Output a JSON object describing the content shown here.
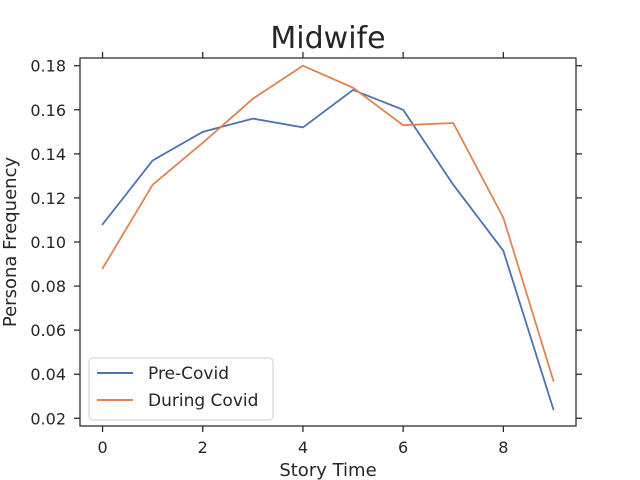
{
  "chart_data": {
    "type": "line",
    "title": "Midwife",
    "xlabel": "Story Time",
    "ylabel": "Persona Frequency",
    "xlim": [
      -0.45,
      9.45
    ],
    "ylim": [
      0.0165,
      0.1835
    ],
    "xticks": [
      0,
      2,
      4,
      6,
      8
    ],
    "yticks": [
      0.02,
      0.04,
      0.06,
      0.08,
      0.1,
      0.12,
      0.14,
      0.16,
      0.18
    ],
    "ytick_labels": [
      "0.02",
      "0.04",
      "0.06",
      "0.08",
      "0.10",
      "0.12",
      "0.14",
      "0.16",
      "0.18"
    ],
    "xtick_labels": [
      "0",
      "2",
      "4",
      "6",
      "8"
    ],
    "grid": false,
    "legend_position": "lower-left",
    "x": [
      0,
      1,
      2,
      3,
      4,
      5,
      6,
      7,
      8,
      9
    ],
    "series": [
      {
        "name": "Pre-Covid",
        "color": "#4c72b0",
        "values": [
          0.108,
          0.137,
          0.15,
          0.156,
          0.152,
          0.169,
          0.16,
          0.126,
          0.096,
          0.024
        ]
      },
      {
        "name": "During Covid",
        "color": "#dd8452",
        "values": [
          0.088,
          0.126,
          0.145,
          0.165,
          0.18,
          0.17,
          0.153,
          0.154,
          0.111,
          0.037
        ]
      }
    ]
  }
}
